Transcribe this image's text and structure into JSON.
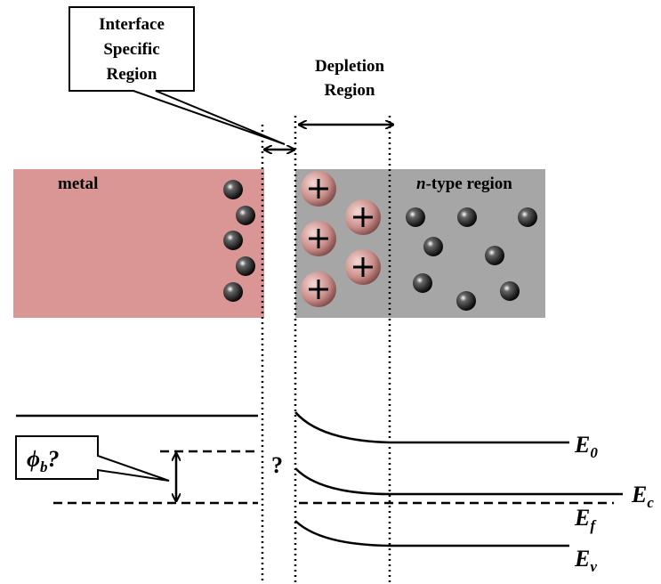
{
  "callout": {
    "lines": [
      "Interface",
      "Specific",
      "Region"
    ]
  },
  "depletion": {
    "lines": [
      "Depletion",
      "Region"
    ]
  },
  "metal_label": "metal",
  "n_region_label": {
    "italic": "n",
    "rest": "-type region"
  },
  "unknown": "?",
  "barrier": {
    "symbol": "ϕ",
    "sub": "b",
    "suffix": "?"
  },
  "levels": [
    {
      "main": "E",
      "sub": "0"
    },
    {
      "main": "E",
      "sub": "c"
    },
    {
      "main": "E",
      "sub": "f"
    },
    {
      "main": "E",
      "sub": "v"
    }
  ]
}
